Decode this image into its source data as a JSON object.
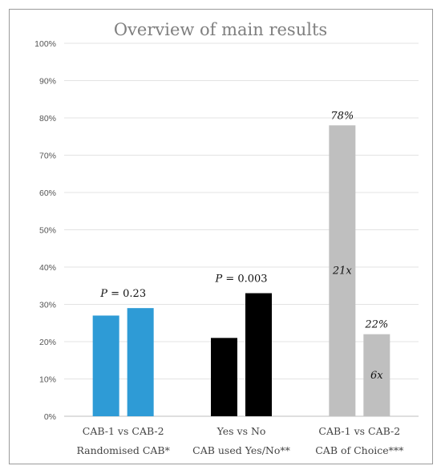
{
  "chart_data": {
    "type": "bar",
    "title": "Overview of main results",
    "xlabel": "",
    "ylabel": "",
    "ylim": [
      0,
      100
    ],
    "yticks": [
      "0%",
      "10%",
      "20%",
      "30%",
      "40%",
      "50%",
      "60%",
      "70%",
      "80%",
      "90%",
      "100%"
    ],
    "grid": true,
    "legend": "none",
    "groups": [
      {
        "label_line1": "CAB-1 vs CAB-2",
        "label_line2": "Randomised CAB*",
        "color": "#2e9bd6",
        "values": [
          27,
          29
        ],
        "annotation": {
          "prefix": "P",
          "text": " = 0.23"
        }
      },
      {
        "label_line1": "Yes vs No",
        "label_line2": "CAB used Yes/No**",
        "color": "#000000",
        "values": [
          21,
          33
        ],
        "annotation": {
          "prefix": "P",
          "text": " = 0.003"
        }
      },
      {
        "label_line1": "CAB-1 vs CAB-2",
        "label_line2": "CAB of Choice***",
        "color": "#bfbfbf",
        "values": [
          78,
          22
        ],
        "value_labels": [
          "78%",
          "22%"
        ],
        "inner_labels": [
          "21x",
          "6x"
        ]
      }
    ]
  }
}
